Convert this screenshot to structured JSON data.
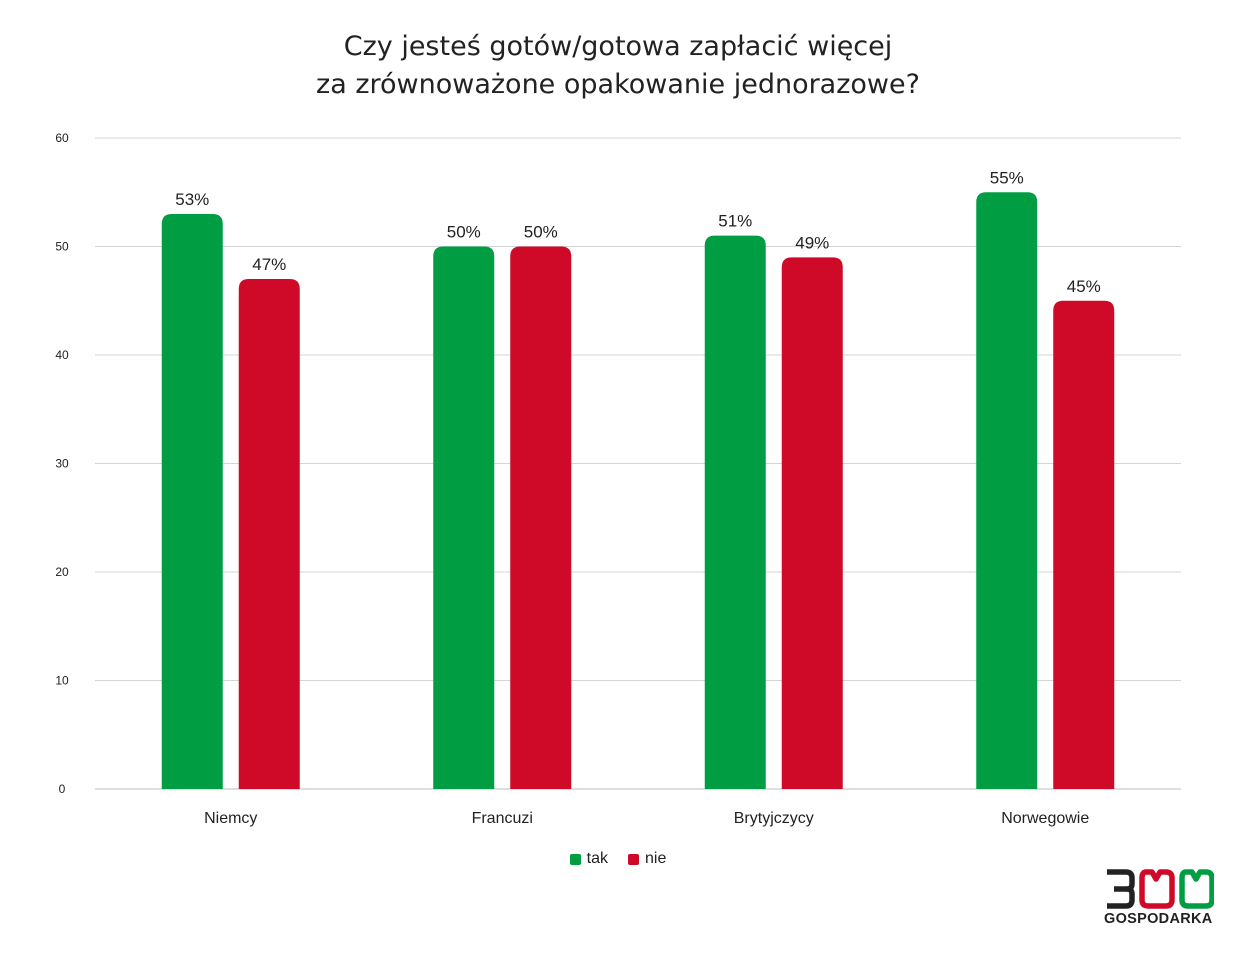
{
  "chart_data": {
    "type": "bar",
    "title_lines": [
      "Czy jesteś gotów/gotowa zapłacić więcej",
      "za zrównoważone opakowanie jednorazowe?"
    ],
    "categories": [
      "Niemcy",
      "Francuzi",
      "Brytyjczycy",
      "Norwegowie"
    ],
    "series": [
      {
        "name": "tak",
        "values": [
          53,
          50,
          51,
          55
        ],
        "labels": [
          "53%",
          "50%",
          "51%",
          "55%"
        ],
        "color": "#009d43"
      },
      {
        "name": "nie",
        "values": [
          47,
          50,
          49,
          45
        ],
        "labels": [
          "47%",
          "50%",
          "49%",
          "45%"
        ],
        "color": "#cf0a28"
      }
    ],
    "ylim": [
      0,
      60
    ],
    "yticks": [
      "0",
      "10",
      "20",
      "30",
      "40",
      "50",
      "60"
    ],
    "grid": true,
    "legend_position": "bottom-center"
  },
  "logo": {
    "number": "300",
    "text": "GOSPODARKA",
    "colors": {
      "dark": "#222222",
      "red": "#cf0a28",
      "green": "#009d43"
    }
  }
}
